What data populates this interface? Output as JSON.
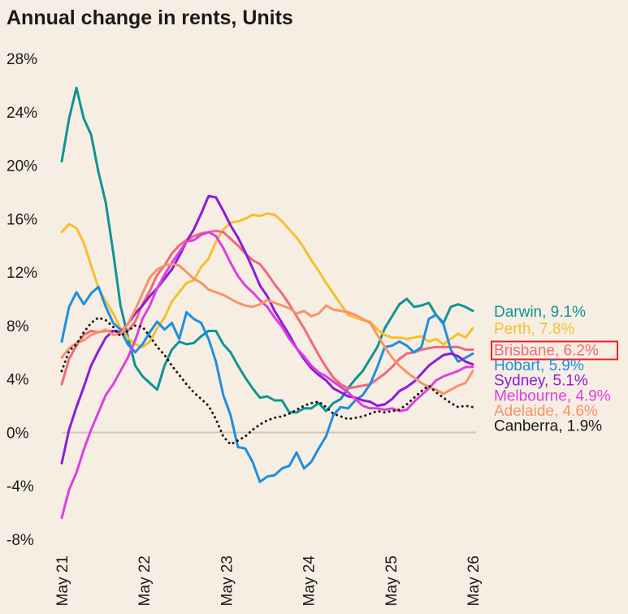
{
  "chart_data": {
    "type": "line",
    "title": "Annual change in rents, Units",
    "xlabel": "",
    "ylabel": "",
    "y_ticks": [
      "28%",
      "24%",
      "20%",
      "16%",
      "12%",
      "8%",
      "4%",
      "0%",
      "-4%",
      "-8%"
    ],
    "ylim": [
      -8,
      28
    ],
    "x_ticks": [
      "May 21",
      "May 22",
      "May 23",
      "May 24",
      "May 25",
      "May 26"
    ],
    "zero_line": true,
    "highlighted_label": "Brisbane, 6.2%",
    "series": [
      {
        "name": "Darwin",
        "label": "Darwin, 9.1%",
        "color": "#0f9494",
        "dash": "solid",
        "values": [
          20.3,
          23.5,
          25.8,
          23.5,
          22.3,
          19.5,
          17.2,
          13.5,
          9.5,
          7.2,
          5.0,
          4.2,
          3.7,
          3.2,
          5.0,
          6.2,
          6.8,
          6.6,
          6.7,
          7.2,
          7.6,
          7.6,
          6.6,
          6.0,
          5.0,
          4.1,
          3.3,
          2.6,
          2.7,
          2.4,
          2.4,
          1.5,
          1.5,
          1.8,
          1.8,
          2.2,
          1.6,
          2.2,
          2.5,
          3.3,
          4.0,
          4.6,
          5.5,
          6.4,
          7.8,
          8.7,
          9.6,
          10.0,
          9.4,
          9.5,
          9.7,
          8.8,
          8.2,
          9.4,
          9.6,
          9.4,
          9.1
        ]
      },
      {
        "name": "Perth",
        "label": "Perth, 7.8%",
        "color": "#f5c02a",
        "dash": "solid",
        "values": [
          15.0,
          15.6,
          15.3,
          14.2,
          12.5,
          10.8,
          9.8,
          8.9,
          7.8,
          7.1,
          6.6,
          6.4,
          6.8,
          7.8,
          8.6,
          9.8,
          10.5,
          11.2,
          11.4,
          12.4,
          13.0,
          14.3,
          15.2,
          15.7,
          15.8,
          16.0,
          16.3,
          16.2,
          16.4,
          16.3,
          15.8,
          15.2,
          14.6,
          13.8,
          12.9,
          12.1,
          11.2,
          10.4,
          9.6,
          8.8,
          8.6,
          8.4,
          8.3,
          7.7,
          7.3,
          7.1,
          7.1,
          7.0,
          7.1,
          7.2,
          6.8,
          7.0,
          6.6,
          7.0,
          7.4,
          7.1,
          7.8
        ]
      },
      {
        "name": "Brisbane",
        "label": "Brisbane, 6.2%",
        "color": "#f2687a",
        "dash": "solid",
        "values": [
          3.6,
          5.5,
          6.5,
          7.3,
          7.6,
          7.5,
          7.6,
          7.6,
          7.5,
          7.6,
          8.3,
          9.6,
          10.6,
          11.8,
          12.5,
          13.4,
          14.0,
          14.4,
          14.7,
          14.9,
          15.0,
          15.1,
          15.0,
          14.5,
          14.0,
          13.4,
          12.9,
          12.6,
          11.9,
          11.1,
          10.4,
          9.6,
          8.7,
          7.8,
          6.8,
          5.8,
          4.9,
          4.1,
          3.6,
          3.3,
          3.4,
          3.5,
          3.6,
          4.0,
          4.4,
          4.9,
          5.5,
          5.9,
          6.0,
          6.2,
          6.3,
          6.4,
          6.4,
          6.4,
          6.4,
          6.2,
          6.2
        ]
      },
      {
        "name": "Hobart",
        "label": "Hobart, 5.9%",
        "color": "#1e8fe0",
        "dash": "solid",
        "values": [
          6.8,
          9.4,
          10.5,
          9.6,
          10.4,
          10.9,
          9.4,
          8.2,
          7.7,
          6.6,
          6.0,
          6.6,
          7.5,
          8.3,
          7.7,
          8.2,
          7.0,
          9.0,
          8.5,
          8.2,
          7.0,
          5.3,
          2.8,
          1.3,
          -1.1,
          -1.2,
          -2.2,
          -3.7,
          -3.3,
          -3.2,
          -2.7,
          -2.5,
          -1.5,
          -2.7,
          -2.2,
          -1.2,
          -0.3,
          1.3,
          1.9,
          1.8,
          2.4,
          2.8,
          3.6,
          4.9,
          6.4,
          6.5,
          6.8,
          6.5,
          6.0,
          6.4,
          8.5,
          8.8,
          8.1,
          6.2,
          5.3,
          5.6,
          5.9
        ]
      },
      {
        "name": "Sydney",
        "label": "Sydney, 5.1%",
        "color": "#8c1cdb",
        "dash": "solid",
        "values": [
          -2.3,
          0.2,
          1.9,
          3.4,
          5.0,
          6.1,
          7.1,
          7.6,
          7.5,
          8.1,
          8.9,
          9.5,
          10.2,
          10.8,
          11.5,
          12.2,
          13.2,
          14.3,
          15.2,
          16.4,
          17.7,
          17.6,
          16.6,
          15.5,
          14.6,
          13.5,
          12.3,
          11.0,
          10.2,
          9.1,
          8.2,
          7.3,
          6.3,
          5.5,
          4.8,
          4.3,
          3.9,
          3.3,
          3.0,
          2.7,
          2.6,
          2.4,
          2.3,
          2.0,
          2.1,
          2.5,
          3.1,
          3.4,
          3.8,
          4.4,
          5.0,
          5.4,
          5.8,
          5.9,
          5.7,
          5.3,
          5.1
        ]
      },
      {
        "name": "Melbourne",
        "label": "Melbourne, 4.9%",
        "color": "#dd3fe0",
        "dash": "solid",
        "values": [
          -6.4,
          -4.3,
          -3.0,
          -1.3,
          0.2,
          1.5,
          2.8,
          3.6,
          4.6,
          5.6,
          6.9,
          8.5,
          9.5,
          10.8,
          11.8,
          12.7,
          13.5,
          14.3,
          14.4,
          14.8,
          15.0,
          14.7,
          13.8,
          12.7,
          11.7,
          11.0,
          10.5,
          9.9,
          9.4,
          8.6,
          7.9,
          7.0,
          6.3,
          5.7,
          5.0,
          4.5,
          4.2,
          3.8,
          3.4,
          3.0,
          2.5,
          2.0,
          1.8,
          1.8,
          1.7,
          1.8,
          1.6,
          1.7,
          2.3,
          2.8,
          3.3,
          3.9,
          4.2,
          4.4,
          4.6,
          4.9,
          4.9
        ]
      },
      {
        "name": "Adelaide",
        "label": "Adelaide, 4.6%",
        "color": "#f7936a",
        "dash": "solid",
        "values": [
          5.6,
          6.3,
          6.7,
          6.9,
          7.3,
          7.5,
          7.7,
          7.3,
          7.4,
          8.1,
          9.2,
          10.4,
          11.6,
          12.2,
          12.5,
          12.6,
          12.5,
          12.0,
          11.5,
          11.2,
          10.7,
          10.5,
          10.3,
          10.0,
          9.7,
          9.5,
          9.4,
          9.6,
          9.9,
          9.7,
          9.5,
          9.3,
          8.9,
          9.1,
          8.7,
          8.9,
          9.5,
          9.2,
          9.1,
          9.0,
          8.8,
          8.5,
          8.2,
          7.3,
          6.4,
          5.6,
          5.0,
          4.5,
          4.1,
          3.7,
          3.4,
          3.2,
          2.9,
          3.2,
          3.5,
          3.7,
          4.6
        ]
      },
      {
        "name": "Canberra",
        "label": "Canberra, 1.9%",
        "color": "#1a1a1a",
        "dash": "dotted",
        "values": [
          4.6,
          6.1,
          6.6,
          7.5,
          8.2,
          8.6,
          8.4,
          7.9,
          7.2,
          7.6,
          8.0,
          7.9,
          7.2,
          6.4,
          5.8,
          5.0,
          4.3,
          3.6,
          3.0,
          2.5,
          2.0,
          1.0,
          -0.3,
          -0.9,
          -0.6,
          -0.3,
          0.2,
          0.6,
          0.9,
          1.1,
          1.2,
          1.4,
          1.7,
          2.0,
          2.2,
          2.3,
          1.9,
          1.4,
          1.2,
          1.0,
          1.1,
          1.2,
          1.4,
          1.6,
          1.5,
          1.6,
          1.7,
          2.1,
          2.6,
          3.1,
          3.5,
          3.0,
          2.6,
          2.2,
          1.9,
          2.0,
          1.9
        ]
      }
    ]
  }
}
